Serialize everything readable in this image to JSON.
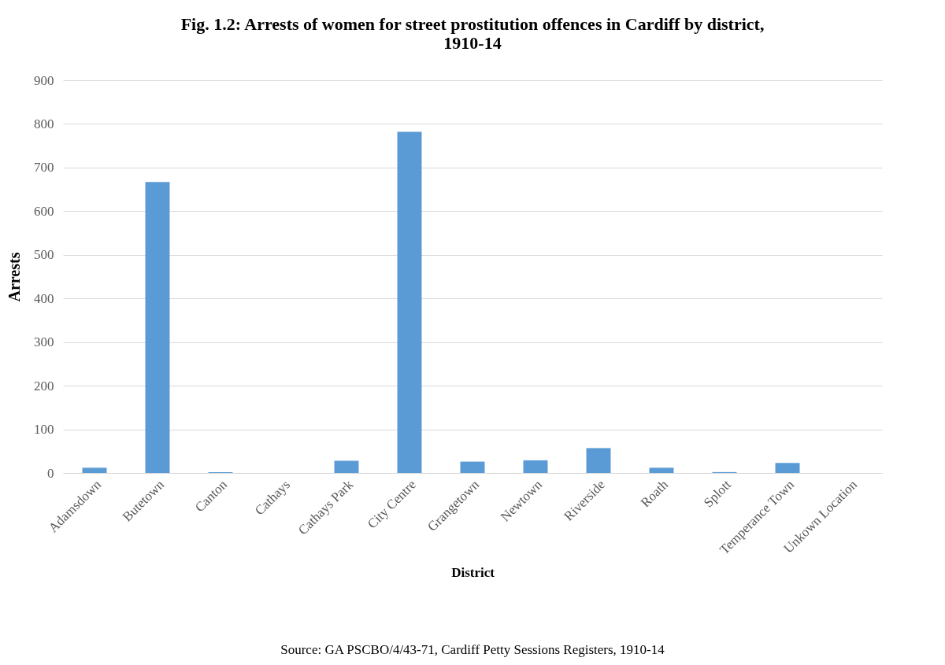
{
  "chart_data": {
    "type": "bar",
    "title": [
      "Fig. 1.2: Arrests of women for street prostitution offences in Cardiff by district,",
      "1910-14"
    ],
    "xlabel": "District",
    "ylabel": "Arrests",
    "categories": [
      "Adamsdown",
      "Butetown",
      "Canton",
      "Cathays",
      "Cathays Park",
      "City Centre",
      "Grangetown",
      "Newtown",
      "Riverside",
      "Roath",
      "Splott",
      "Temperance Town",
      "Unkown Location"
    ],
    "values": [
      12,
      667,
      2,
      0,
      28,
      782,
      26,
      29,
      57,
      12,
      2,
      23,
      0
    ],
    "color": "#5b9bd5",
    "ylim": [
      0,
      900
    ],
    "yticks": [
      0,
      100,
      200,
      300,
      400,
      500,
      600,
      700,
      800,
      900
    ],
    "grid": "y",
    "annotations": [
      "Source: GA PSCBO/4/43-71, Cardiff Petty Sessions Registers, 1910-14"
    ]
  }
}
